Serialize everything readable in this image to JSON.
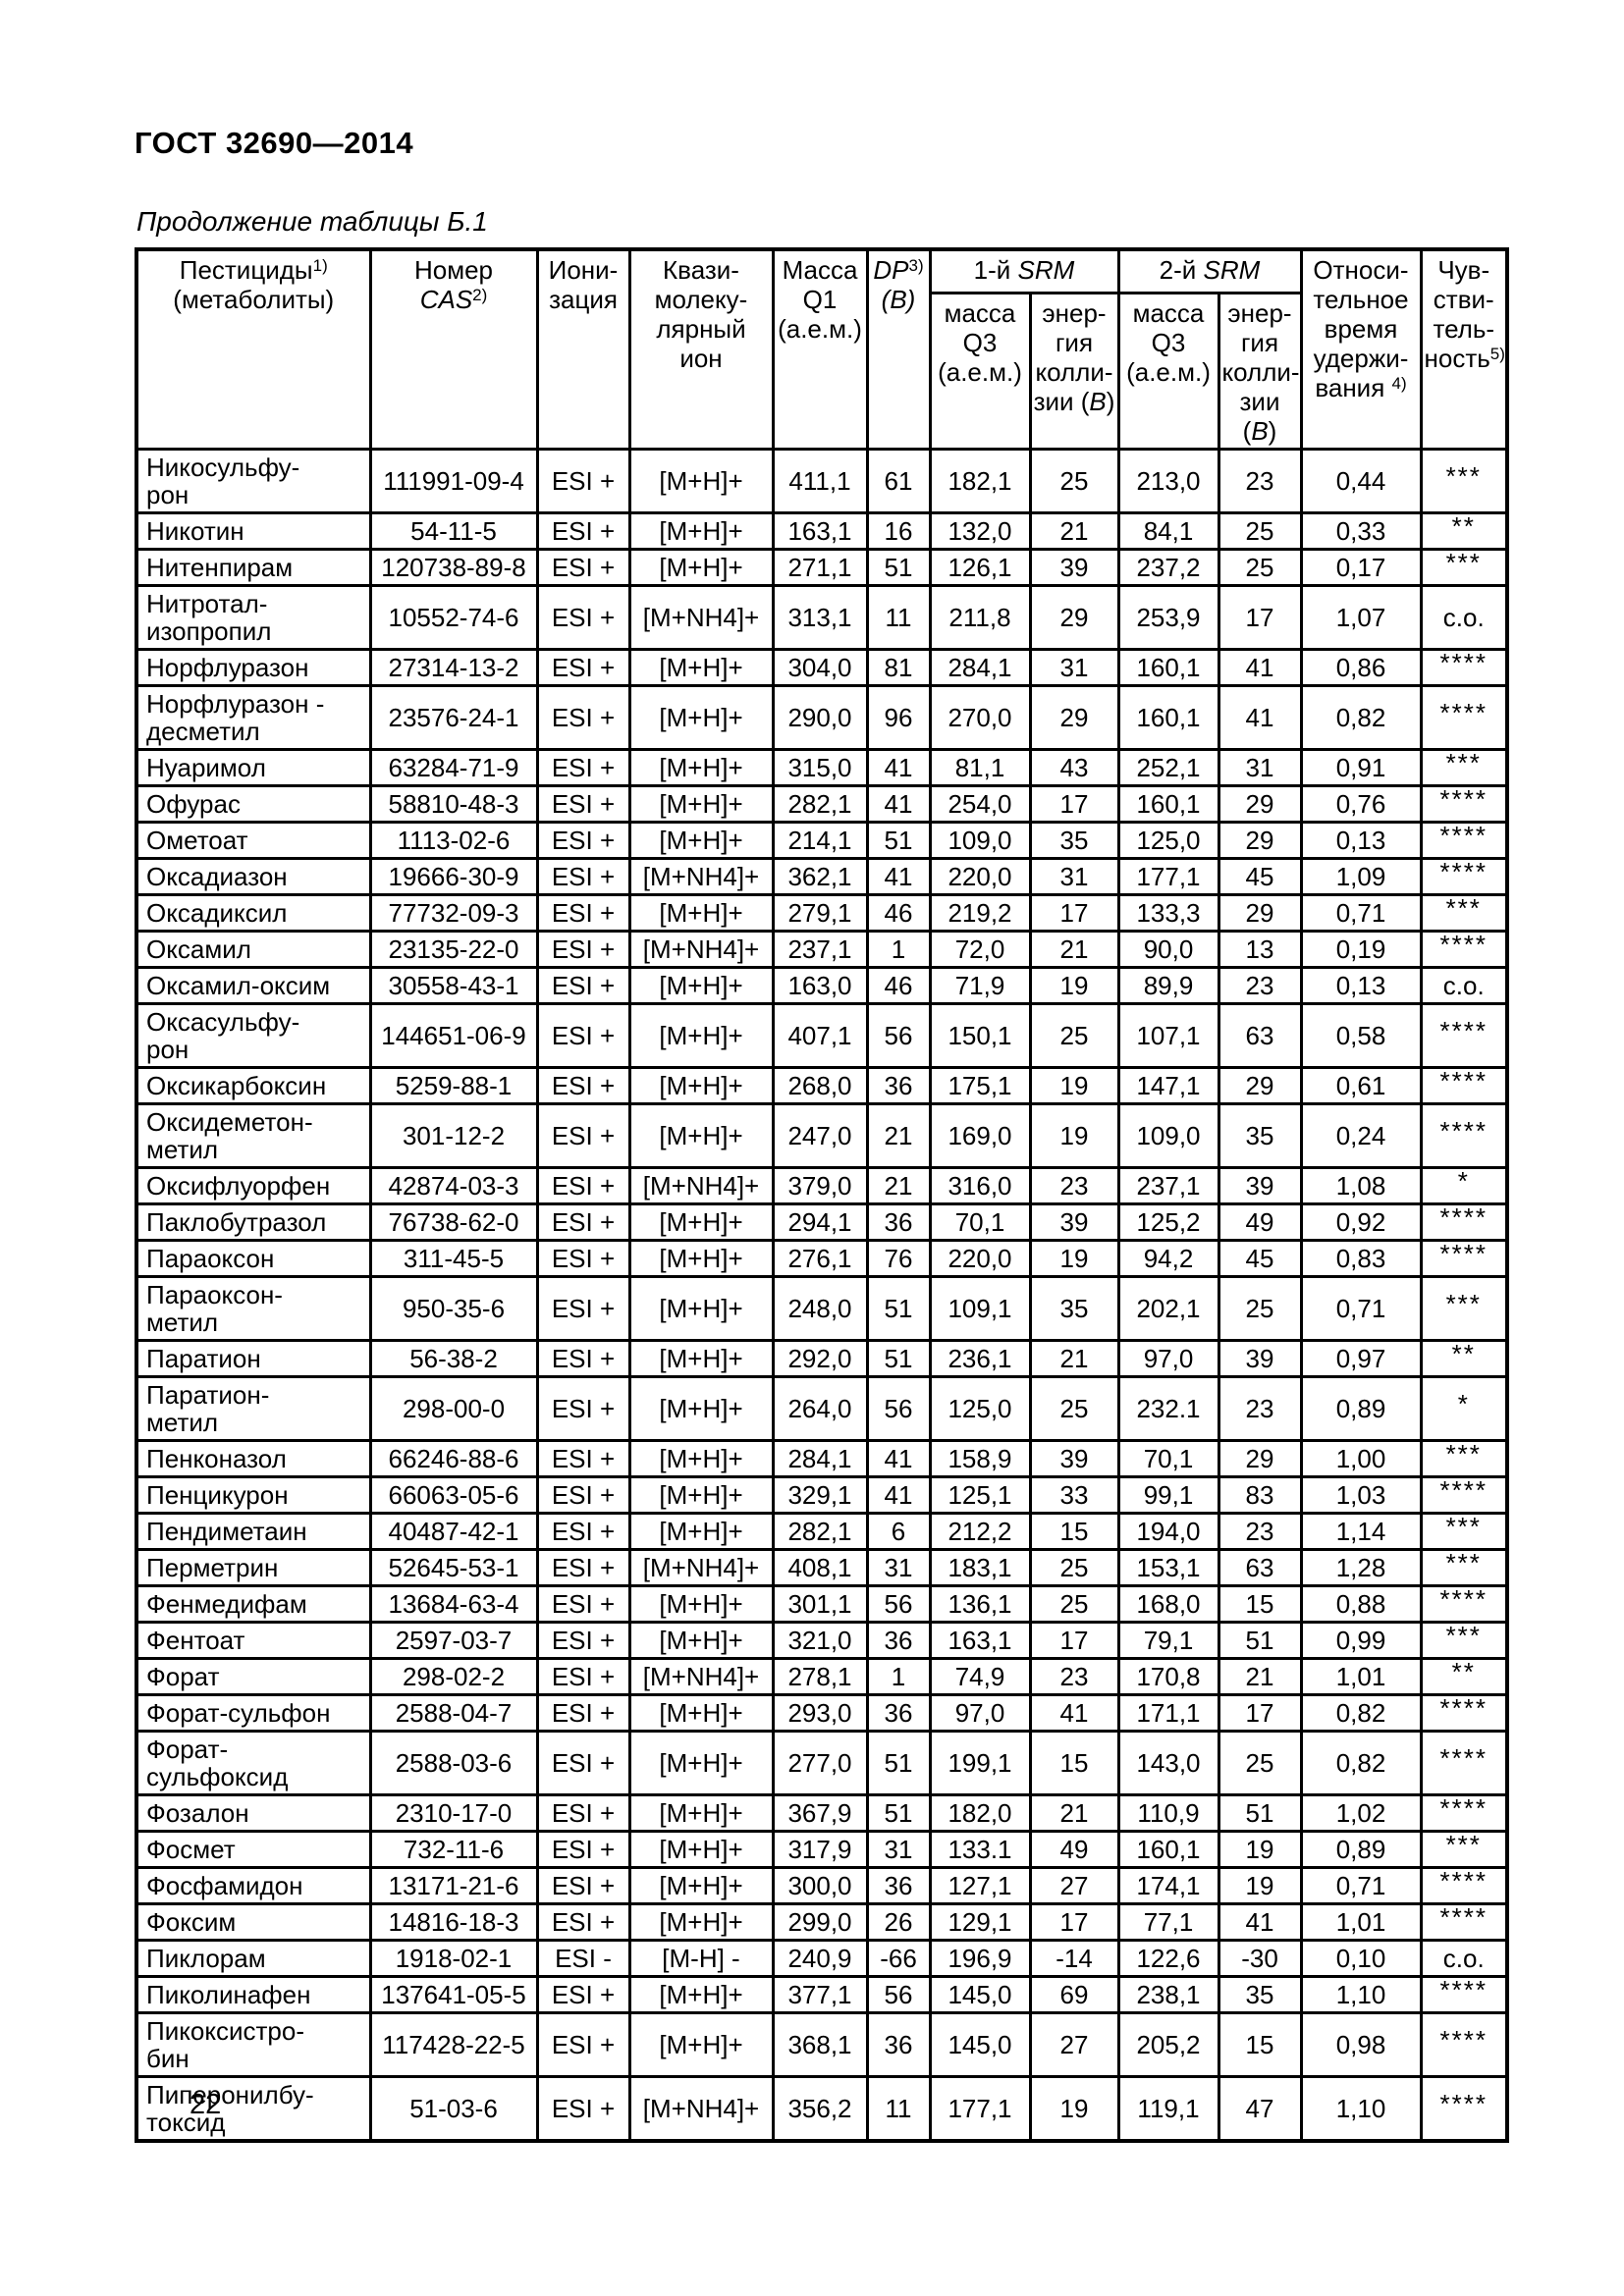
{
  "page": {
    "doc_title": "ГОСТ 32690—2014",
    "table_caption": "Продолжение таблицы Б.1",
    "page_number": "22"
  },
  "table": {
    "header": {
      "pesticides": [
        {
          "t": "Пестициды"
        },
        {
          "t": "1)",
          "sup": true
        },
        {
          "br": true
        },
        {
          "t": "(метаболиты)"
        }
      ],
      "cas_number": [
        {
          "t": "Номер"
        },
        {
          "br": true
        },
        {
          "t": "CAS",
          "i": true
        },
        {
          "t": "2)",
          "sup": true
        }
      ],
      "ionization": [
        {
          "t": "Иони-"
        },
        {
          "br": true
        },
        {
          "t": "зация"
        }
      ],
      "quasi_molecular_ion": [
        {
          "t": "Квази-"
        },
        {
          "br": true
        },
        {
          "t": "молеку-"
        },
        {
          "br": true
        },
        {
          "t": "лярный"
        },
        {
          "br": true
        },
        {
          "t": "ион"
        }
      ],
      "mass_q1": [
        {
          "t": "Масса"
        },
        {
          "br": true
        },
        {
          "t": "Q1"
        },
        {
          "br": true
        },
        {
          "t": "(а.е.м.)"
        }
      ],
      "dp": [
        {
          "t": "DP",
          "i": true
        },
        {
          "t": "3)",
          "sup": true
        },
        {
          "br": true
        },
        {
          "t": "(В)",
          "i": true
        }
      ],
      "srm_1": [
        {
          "t": "1-й "
        },
        {
          "t": "SRM",
          "i": true
        }
      ],
      "srm_2": [
        {
          "t": "2-й "
        },
        {
          "t": "SRM",
          "i": true
        }
      ],
      "mass_q3": [
        {
          "t": "масса"
        },
        {
          "br": true
        },
        {
          "t": "Q3"
        },
        {
          "br": true
        },
        {
          "t": "(а.е.м.)"
        }
      ],
      "collision_energy": [
        {
          "t": "энер-"
        },
        {
          "br": true
        },
        {
          "t": "гия"
        },
        {
          "br": true
        },
        {
          "t": "колли-"
        },
        {
          "br": true
        },
        {
          "t": "зии ("
        },
        {
          "t": "В",
          "i": true
        },
        {
          "t": ")"
        }
      ],
      "relative_retention_time": [
        {
          "t": "Относи-"
        },
        {
          "br": true
        },
        {
          "t": "тельное"
        },
        {
          "br": true
        },
        {
          "t": "время"
        },
        {
          "br": true
        },
        {
          "t": "удержи-"
        },
        {
          "br": true
        },
        {
          "t": "вания "
        },
        {
          "t": "4)",
          "sup": true
        }
      ],
      "sensitivity": [
        {
          "t": "Чув-"
        },
        {
          "br": true
        },
        {
          "t": "стви-"
        },
        {
          "br": true
        },
        {
          "t": "тель-"
        },
        {
          "br": true
        },
        {
          "t": "ность"
        },
        {
          "t": "5)",
          "sup": true
        }
      ]
    },
    "rows": [
      [
        "Никосульфу-\nрон",
        "111991-09-4",
        "ESI +",
        "[M+H]+",
        "411,1",
        "61",
        "182,1",
        "25",
        "213,0",
        "23",
        "0,44",
        "***"
      ],
      [
        "Никотин",
        "54-11-5",
        "ESI +",
        "[M+H]+",
        "163,1",
        "16",
        "132,0",
        "21",
        "84,1",
        "25",
        "0,33",
        "**"
      ],
      [
        "Нитенпирам",
        "120738-89-8",
        "ESI +",
        "[M+H]+",
        "271,1",
        "51",
        "126,1",
        "39",
        "237,2",
        "25",
        "0,17",
        "***"
      ],
      [
        "Нитротал-\nизопропил",
        "10552-74-6",
        "ESI +",
        "[M+NH4]+",
        "313,1",
        "11",
        "211,8",
        "29",
        "253,9",
        "17",
        "1,07",
        "с.о."
      ],
      [
        "Норфлуразон",
        "27314-13-2",
        "ESI +",
        "[M+H]+",
        "304,0",
        "81",
        "284,1",
        "31",
        "160,1",
        "41",
        "0,86",
        "****"
      ],
      [
        "Норфлуразон -\nдесметил",
        "23576-24-1",
        "ESI +",
        "[M+H]+",
        "290,0",
        "96",
        "270,0",
        "29",
        "160,1",
        "41",
        "0,82",
        "****"
      ],
      [
        "Нуаримол",
        "63284-71-9",
        "ESI +",
        "[M+H]+",
        "315,0",
        "41",
        "81,1",
        "43",
        "252,1",
        "31",
        "0,91",
        "***"
      ],
      [
        "Офурас",
        "58810-48-3",
        "ESI +",
        "[M+H]+",
        "282,1",
        "41",
        "254,0",
        "17",
        "160,1",
        "29",
        "0,76",
        "****"
      ],
      [
        "Ометоат",
        "1113-02-6",
        "ESI +",
        "[M+H]+",
        "214,1",
        "51",
        "109,0",
        "35",
        "125,0",
        "29",
        "0,13",
        "****"
      ],
      [
        "Оксадиазон",
        "19666-30-9",
        "ESI +",
        "[M+NH4]+",
        "362,1",
        "41",
        "220,0",
        "31",
        "177,1",
        "45",
        "1,09",
        "****"
      ],
      [
        "Оксадиксил",
        "77732-09-3",
        "ESI +",
        "[M+H]+",
        "279,1",
        "46",
        "219,2",
        "17",
        "133,3",
        "29",
        "0,71",
        "***"
      ],
      [
        "Оксамил",
        "23135-22-0",
        "ESI +",
        "[M+NH4]+",
        "237,1",
        "1",
        "72,0",
        "21",
        "90,0",
        "13",
        "0,19",
        "****"
      ],
      [
        "Оксамил-оксим",
        "30558-43-1",
        "ESI +",
        "[M+H]+",
        "163,0",
        "46",
        "71,9",
        "19",
        "89,9",
        "23",
        "0,13",
        "с.о."
      ],
      [
        "Оксасульфу-\nрон",
        "144651-06-9",
        "ESI +",
        "[M+H]+",
        "407,1",
        "56",
        "150,1",
        "25",
        "107,1",
        "63",
        "0,58",
        "****"
      ],
      [
        "Оксикарбоксин",
        "5259-88-1",
        "ESI +",
        "[M+H]+",
        "268,0",
        "36",
        "175,1",
        "19",
        "147,1",
        "29",
        "0,61",
        "****"
      ],
      [
        "Оксидеметон-\nметил",
        "301-12-2",
        "ESI +",
        "[M+H]+",
        "247,0",
        "21",
        "169,0",
        "19",
        "109,0",
        "35",
        "0,24",
        "****"
      ],
      [
        "Оксифлуорфен",
        "42874-03-3",
        "ESI +",
        "[M+NH4]+",
        "379,0",
        "21",
        "316,0",
        "23",
        "237,1",
        "39",
        "1,08",
        "*"
      ],
      [
        "Паклобутразол",
        "76738-62-0",
        "ESI +",
        "[M+H]+",
        "294,1",
        "36",
        "70,1",
        "39",
        "125,2",
        "49",
        "0,92",
        "****"
      ],
      [
        "Параоксон",
        "311-45-5",
        "ESI +",
        "[M+H]+",
        "276,1",
        "76",
        "220,0",
        "19",
        "94,2",
        "45",
        "0,83",
        "****"
      ],
      [
        "Параоксон-\nметил",
        "950-35-6",
        "ESI +",
        "[M+H]+",
        "248,0",
        "51",
        "109,1",
        "35",
        "202,1",
        "25",
        "0,71",
        "***"
      ],
      [
        "Паратион",
        "56-38-2",
        "ESI +",
        "[M+H]+",
        "292,0",
        "51",
        "236,1",
        "21",
        "97,0",
        "39",
        "0,97",
        "**"
      ],
      [
        "Паратион-\nметил",
        "298-00-0",
        "ESI +",
        "[M+H]+",
        "264,0",
        "56",
        "125,0",
        "25",
        "232.1",
        "23",
        "0,89",
        "*"
      ],
      [
        "Пенконазол",
        "66246-88-6",
        "ESI +",
        "[M+H]+",
        "284,1",
        "41",
        "158,9",
        "39",
        "70,1",
        "29",
        "1,00",
        "***"
      ],
      [
        "Пенцикурон",
        "66063-05-6",
        "ESI +",
        "[M+H]+",
        "329,1",
        "41",
        "125,1",
        "33",
        "99,1",
        "83",
        "1,03",
        "****"
      ],
      [
        "Пендиметаин",
        "40487-42-1",
        "ESI +",
        "[M+H]+",
        "282,1",
        "6",
        "212,2",
        "15",
        "194,0",
        "23",
        "1,14",
        "***"
      ],
      [
        "Перметрин",
        "52645-53-1",
        "ESI +",
        "[M+NH4]+",
        "408,1",
        "31",
        "183,1",
        "25",
        "153,1",
        "63",
        "1,28",
        "***"
      ],
      [
        "Фенмедифам",
        "13684-63-4",
        "ESI +",
        "[M+H]+",
        "301,1",
        "56",
        "136,1",
        "25",
        "168,0",
        "15",
        "0,88",
        "****"
      ],
      [
        "Фентоат",
        "2597-03-7",
        "ESI +",
        "[M+H]+",
        "321,0",
        "36",
        "163,1",
        "17",
        "79,1",
        "51",
        "0,99",
        "***"
      ],
      [
        "Форат",
        "298-02-2",
        "ESI +",
        "[M+NH4]+",
        "278,1",
        "1",
        "74,9",
        "23",
        "170,8",
        "21",
        "1,01",
        "**"
      ],
      [
        "Форат-сульфон",
        "2588-04-7",
        "ESI +",
        "[M+H]+",
        "293,0",
        "36",
        "97,0",
        "41",
        "171,1",
        "17",
        "0,82",
        "****"
      ],
      [
        "Форат-\nсульфоксид",
        "2588-03-6",
        "ESI +",
        "[M+H]+",
        "277,0",
        "51",
        "199,1",
        "15",
        "143,0",
        "25",
        "0,82",
        "****"
      ],
      [
        "Фозалон",
        "2310-17-0",
        "ESI +",
        "[M+H]+",
        "367,9",
        "51",
        "182,0",
        "21",
        "110,9",
        "51",
        "1,02",
        "****"
      ],
      [
        "Фосмет",
        "732-11-6",
        "ESI +",
        "[M+H]+",
        "317,9",
        "31",
        "133.1",
        "49",
        "160,1",
        "19",
        "0,89",
        "***"
      ],
      [
        "Фосфамидон",
        "13171-21-6",
        "ESI +",
        "[M+H]+",
        "300,0",
        "36",
        "127,1",
        "27",
        "174,1",
        "19",
        "0,71",
        "****"
      ],
      [
        "Фоксим",
        "14816-18-3",
        "ESI +",
        "[M+H]+",
        "299,0",
        "26",
        "129,1",
        "17",
        "77,1",
        "41",
        "1,01",
        "****"
      ],
      [
        "Пиклорам",
        "1918-02-1",
        "ESI -",
        "[M-H] -",
        "240,9",
        "-66",
        "196,9",
        "-14",
        "122,6",
        "-30",
        "0,10",
        "с.о."
      ],
      [
        "Пиколинафен",
        "137641-05-5",
        "ESI +",
        "[M+H]+",
        "377,1",
        "56",
        "145,0",
        "69",
        "238,1",
        "35",
        "1,10",
        "****"
      ],
      [
        "Пикоксистро-\nбин",
        "117428-22-5",
        "ESI +",
        "[M+H]+",
        "368,1",
        "36",
        "145,0",
        "27",
        "205,2",
        "15",
        "0,98",
        "****"
      ],
      [
        "Пиперонилбу-\nтоксид",
        "51-03-6",
        "ESI +",
        "[M+NH4]+",
        "356,2",
        "11",
        "177,1",
        "19",
        "119,1",
        "47",
        "1,10",
        "****"
      ]
    ]
  }
}
